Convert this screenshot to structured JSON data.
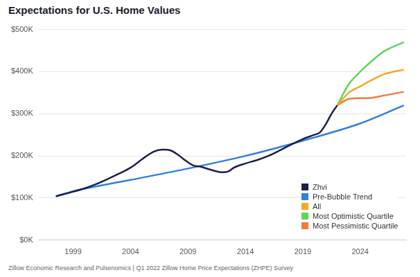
{
  "chart_data": {
    "type": "line",
    "title": "Expectations for U.S. Home Values",
    "source": "Zillow Economic Research and Pulsenomics | Q1 2022 Zillow Home Price Expectations (ZHPE) Survey",
    "xlim": [
      1996,
      2028
    ],
    "xticks": [
      1999,
      2004,
      2009,
      2014,
      2019,
      2024
    ],
    "ylim": [
      0,
      500000
    ],
    "yticks": [
      {
        "value": 0,
        "label": "$0K"
      },
      {
        "value": 100000,
        "label": "$100K"
      },
      {
        "value": 200000,
        "label": "$200K"
      },
      {
        "value": 300000,
        "label": "$300K"
      },
      {
        "value": 400000,
        "label": "$400K"
      },
      {
        "value": 500000,
        "label": "$500K"
      }
    ],
    "grid": true,
    "legend": "lower right",
    "series": [
      {
        "name": "Zhvi",
        "color": "#1a1f4d",
        "x": [
          1997.5,
          1999,
          2000,
          2001,
          2002,
          2003,
          2004,
          2005,
          2006,
          2006.8,
          2007.5,
          2008,
          2009,
          2009.5,
          2010,
          2011,
          2012,
          2012.5,
          2013,
          2014,
          2015,
          2016,
          2017,
          2018,
          2019,
          2020,
          2020.5,
          2021,
          2021.5,
          2022
        ],
        "values": [
          104000,
          115000,
          123000,
          133000,
          145000,
          158000,
          172000,
          192000,
          210000,
          215000,
          213000,
          205000,
          185000,
          177000,
          175000,
          167000,
          161000,
          163000,
          172000,
          182000,
          190000,
          200000,
          213000,
          227000,
          240000,
          250000,
          256000,
          275000,
          300000,
          320000
        ]
      },
      {
        "name": "Pre-Bubble Trend",
        "color": "#2f80e0",
        "x": [
          1997.5,
          1999,
          2004,
          2009,
          2014,
          2019,
          2024,
          2027.8
        ],
        "values": [
          104000,
          116000,
          143000,
          170000,
          200000,
          236000,
          277000,
          320000
        ]
      },
      {
        "name": "All",
        "color": "#f2a922",
        "x": [
          2022,
          2023,
          2024,
          2025,
          2026,
          2027.8
        ],
        "values": [
          320000,
          350000,
          365000,
          380000,
          393000,
          405000
        ]
      },
      {
        "name": "Most Optimistic Quartile",
        "color": "#5cd65c",
        "x": [
          2022,
          2023,
          2024,
          2025,
          2026,
          2027.8
        ],
        "values": [
          320000,
          370000,
          400000,
          425000,
          447000,
          470000
        ]
      },
      {
        "name": "Most Pessimistic Quartile",
        "color": "#f07b3c",
        "x": [
          2022,
          2023,
          2024,
          2025,
          2026,
          2027.8
        ],
        "values": [
          320000,
          335000,
          337000,
          338000,
          343000,
          352000
        ]
      }
    ]
  }
}
